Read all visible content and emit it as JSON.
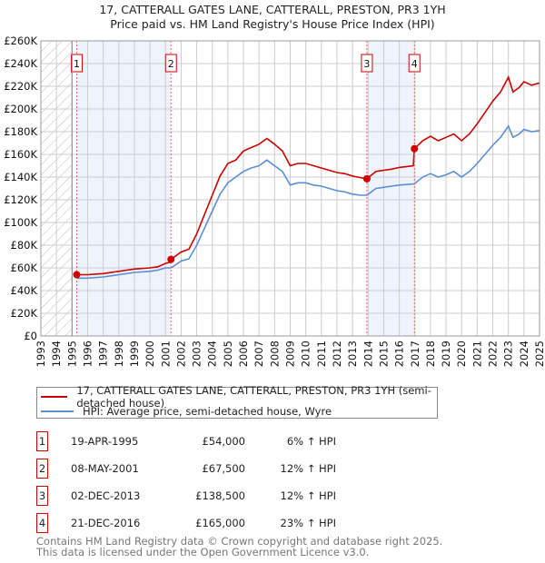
{
  "title": "17, CATTERALL GATES LANE, CATTERALL, PRESTON, PR3 1YH",
  "subtitle": "Price paid vs. HM Land Registry's House Price Index (HPI)",
  "colors": {
    "property": "#cc0000",
    "hpi": "#5b8fd4",
    "band": "#eef3fc",
    "marker_line": "#ff6666"
  },
  "chart_data": {
    "type": "line",
    "title": "17, CATTERALL GATES LANE, CATTERALL, PRESTON, PR3 1YH",
    "xlabel": "",
    "ylabel": "",
    "xlim": [
      1993,
      2025
    ],
    "ylim": [
      0,
      260000
    ],
    "grid": true,
    "legend_placement": "below",
    "x_ticks": [
      "1993",
      "1994",
      "1995",
      "1996",
      "1997",
      "1998",
      "1999",
      "2000",
      "2001",
      "2002",
      "2003",
      "2004",
      "2005",
      "2006",
      "2007",
      "2008",
      "2009",
      "2010",
      "2011",
      "2012",
      "2013",
      "2014",
      "2015",
      "2016",
      "2017",
      "2018",
      "2019",
      "2020",
      "2021",
      "2022",
      "2023",
      "2024",
      "2025"
    ],
    "y_ticks": [
      {
        "v": 0,
        "label": "£0"
      },
      {
        "v": 20000,
        "label": "£20K"
      },
      {
        "v": 40000,
        "label": "£40K"
      },
      {
        "v": 60000,
        "label": "£60K"
      },
      {
        "v": 80000,
        "label": "£80K"
      },
      {
        "v": 100000,
        "label": "£100K"
      },
      {
        "v": 120000,
        "label": "£120K"
      },
      {
        "v": 140000,
        "label": "£140K"
      },
      {
        "v": 160000,
        "label": "£160K"
      },
      {
        "v": 180000,
        "label": "£180K"
      },
      {
        "v": 200000,
        "label": "£200K"
      },
      {
        "v": 220000,
        "label": "£220K"
      },
      {
        "v": 240000,
        "label": "£240K"
      },
      {
        "v": 260000,
        "label": "£260K"
      }
    ],
    "series": [
      {
        "name": "17, CATTERALL GATES LANE, CATTERALL, PRESTON, PR3 1YH (semi-detached house)",
        "x": [
          1995.3,
          1996,
          1997,
          1998,
          1998.5,
          1999,
          2000,
          2000.5,
          2001,
          2001.3,
          2001.35,
          2002,
          2002.5,
          2003,
          2003.5,
          2004,
          2004.5,
          2005,
          2005.5,
          2006,
          2006.5,
          2007,
          2007.5,
          2008,
          2008.5,
          2009,
          2009.5,
          2010,
          2010.5,
          2011,
          2011.5,
          2012,
          2012.5,
          2013,
          2013.5,
          2013.92,
          2014.5,
          2015,
          2015.5,
          2016,
          2016.9,
          2016.97,
          2017.5,
          2018,
          2018.5,
          2019,
          2019.5,
          2020,
          2020.5,
          2021,
          2021.5,
          2022,
          2022.5,
          2023,
          2023.3,
          2023.7,
          2024,
          2024.5,
          2025
        ],
        "values": [
          54000,
          54000,
          55000,
          57000,
          58000,
          59000,
          60000,
          61000,
          64000,
          65000,
          67500,
          74000,
          76500,
          90000,
          107000,
          124000,
          141000,
          152000,
          155000,
          163000,
          166000,
          169000,
          174000,
          169000,
          163000,
          150000,
          152000,
          152000,
          150000,
          148000,
          146000,
          144000,
          143000,
          141000,
          139500,
          138500,
          145000,
          146000,
          147000,
          148500,
          150000,
          165000,
          172000,
          176000,
          172000,
          175000,
          178000,
          172000,
          178000,
          187000,
          197000,
          207000,
          215000,
          228000,
          215000,
          219000,
          224000,
          221000,
          223000
        ]
      },
      {
        "name": "HPI: Average price, semi-detached house, Wyre",
        "x": [
          1995.3,
          1996,
          1997,
          1998,
          1998.5,
          1999,
          2000,
          2000.5,
          2001,
          2001.35,
          2002,
          2002.5,
          2003,
          2003.5,
          2004,
          2004.5,
          2005,
          2005.5,
          2006,
          2006.5,
          2007,
          2007.5,
          2008,
          2008.5,
          2009,
          2009.5,
          2010,
          2010.5,
          2011,
          2011.5,
          2012,
          2012.5,
          2013,
          2013.5,
          2013.92,
          2014.5,
          2015,
          2015.5,
          2016,
          2016.97,
          2017.5,
          2018,
          2018.5,
          2019,
          2019.5,
          2020,
          2020.5,
          2021,
          2021.5,
          2022,
          2022.5,
          2023,
          2023.3,
          2023.7,
          2024,
          2024.5,
          2025
        ],
        "values": [
          51000,
          51000,
          52000,
          54000,
          55000,
          56000,
          57000,
          58000,
          60000,
          60000,
          66000,
          68000,
          80000,
          95000,
          110000,
          125000,
          135000,
          140000,
          145000,
          148000,
          150000,
          155000,
          150000,
          145000,
          133000,
          135000,
          135000,
          133000,
          132000,
          130000,
          128000,
          127000,
          125000,
          124000,
          124000,
          130000,
          131000,
          132000,
          133000,
          134000,
          140000,
          143000,
          140000,
          142000,
          145000,
          140000,
          145000,
          152000,
          160000,
          168000,
          175000,
          185000,
          175000,
          178000,
          182000,
          180000,
          181000
        ]
      }
    ],
    "sales": [
      {
        "n": "1",
        "x": 1995.3,
        "price": 54000
      },
      {
        "n": "2",
        "x": 2001.35,
        "price": 67500
      },
      {
        "n": "3",
        "x": 2013.92,
        "price": 138500
      },
      {
        "n": "4",
        "x": 2016.97,
        "price": 165000
      }
    ],
    "shaded_ranges": [
      [
        1995.3,
        2001.35
      ],
      [
        2013.92,
        2016.97
      ]
    ],
    "hatched_range": [
      1993,
      1995
    ]
  },
  "legend": {
    "property": "17, CATTERALL GATES LANE, CATTERALL, PRESTON, PR3 1YH (semi-detached house)",
    "hpi": "HPI: Average price, semi-detached house, Wyre"
  },
  "transactions": [
    {
      "n": "1",
      "date": "19-APR-1995",
      "price": "£54,000",
      "hpi": "6% ↑ HPI"
    },
    {
      "n": "2",
      "date": "08-MAY-2001",
      "price": "£67,500",
      "hpi": "12% ↑ HPI"
    },
    {
      "n": "3",
      "date": "02-DEC-2013",
      "price": "£138,500",
      "hpi": "12% ↑ HPI"
    },
    {
      "n": "4",
      "date": "21-DEC-2016",
      "price": "£165,000",
      "hpi": "23% ↑ HPI"
    }
  ],
  "footer": {
    "line1": "Contains HM Land Registry data © Crown copyright and database right 2025.",
    "line2": "This data is licensed under the Open Government Licence v3.0."
  }
}
